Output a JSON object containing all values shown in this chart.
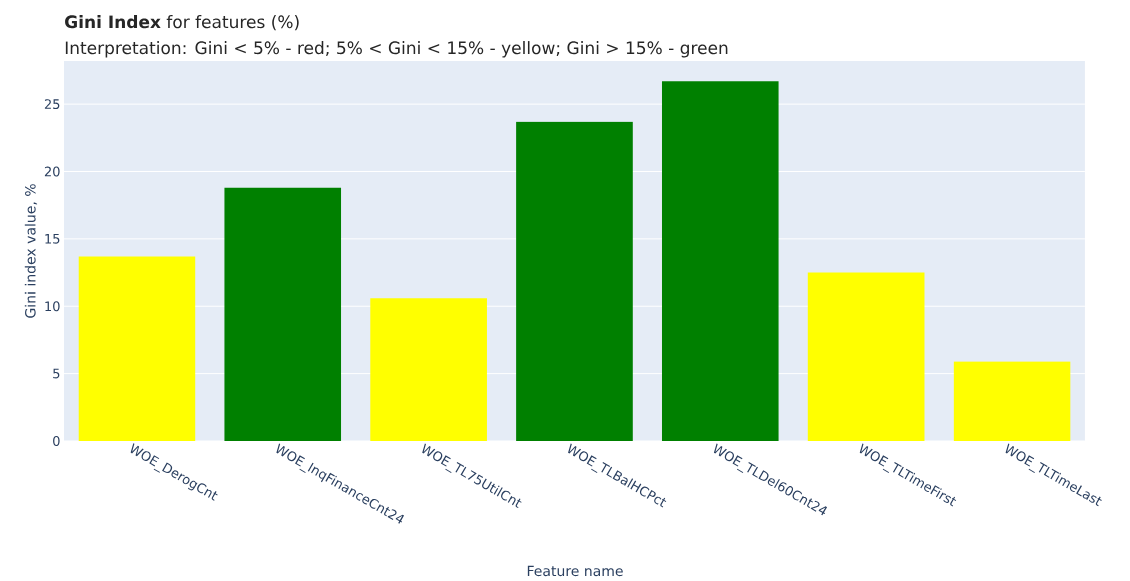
{
  "chart_data": {
    "type": "bar",
    "title": "**Gini Index** for features (%)",
    "subtitle": "Interpretation: Gini < 5% - red; 5% < Gini < 15% - yellow; Gini > 15% - green",
    "xlabel": "Feature name",
    "ylabel": "Gini index value, %",
    "categories": [
      "WOE_DerogCnt",
      "WOE_InqFinanceCnt24",
      "WOE_TL75UtilCnt",
      "WOE_TLBalHCPct",
      "WOE_TLDel60Cnt24",
      "WOE_TLTimeFirst",
      "WOE_TLTimeLast"
    ],
    "values": [
      13.7,
      18.8,
      10.6,
      23.7,
      26.7,
      12.5,
      5.9
    ],
    "colors": [
      "#ffff00",
      "#008000",
      "#ffff00",
      "#008000",
      "#008000",
      "#ffff00",
      "#ffff00"
    ],
    "ylim": [
      0,
      28.2
    ],
    "yticks": [
      0,
      5,
      10,
      15,
      20,
      25
    ],
    "grid": "y"
  }
}
